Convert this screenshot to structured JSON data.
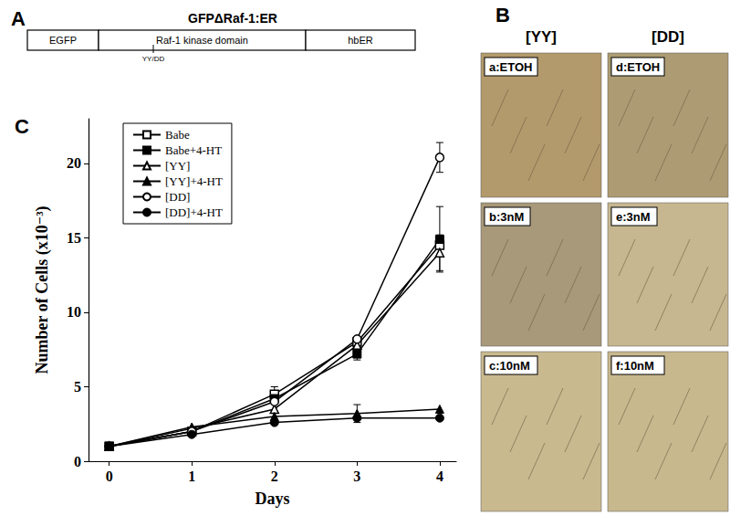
{
  "panel_a": {
    "label": "A",
    "title": "GFPΔRaf-1:ER",
    "segments": [
      "EGFP",
      "Raf-1 kinase domain",
      "hbER"
    ],
    "mutation": "YY/DD"
  },
  "panel_b": {
    "label": "B",
    "columns": [
      "[YY]",
      "[DD]"
    ],
    "images": [
      [
        "a:ETOH",
        "b:3nM",
        "c:10nM"
      ],
      [
        "d:ETOH",
        "e:3nM",
        "f:10nM"
      ]
    ]
  },
  "panel_c": {
    "label": "C"
  },
  "chart_data": {
    "type": "line",
    "x_label": "Days",
    "y_label": "Number of Cells (x10⁻³)",
    "x": [
      0,
      1,
      2,
      3,
      4
    ],
    "xlim": [
      -0.25,
      4.2
    ],
    "xticks": [
      0,
      1,
      2,
      3,
      4
    ],
    "ylim": [
      0,
      23
    ],
    "yticks": [
      0,
      5,
      10,
      15,
      20
    ],
    "grid": false,
    "legend": "upper left",
    "series": [
      {
        "name": "Babe",
        "color": "#000000",
        "marker": "open_square",
        "values": [
          1,
          2.0,
          4.5,
          8.0,
          14.5
        ],
        "errors": [
          0,
          0,
          0.5,
          0.3,
          0
        ]
      },
      {
        "name": "Babe+4-HT",
        "color": "#000000",
        "marker": "filled_square",
        "values": [
          1,
          2.0,
          4.2,
          7.2,
          14.9
        ],
        "errors": [
          0,
          0,
          0,
          0.4,
          2.2
        ]
      },
      {
        "name": "[YY]",
        "color": "#000000",
        "marker": "open_triangle",
        "values": [
          1,
          2.2,
          3.5,
          7.8,
          14.0
        ],
        "errors": [
          0,
          0,
          0,
          0,
          1.2
        ]
      },
      {
        "name": "[YY]+4-HT",
        "color": "#000000",
        "marker": "filled_triangle",
        "values": [
          1,
          2.3,
          3.0,
          3.2,
          3.5
        ],
        "errors": [
          0,
          0,
          0,
          0.6,
          0
        ]
      },
      {
        "name": "[DD]",
        "color": "#000000",
        "marker": "open_circle",
        "values": [
          1,
          2.0,
          4.0,
          8.2,
          20.4
        ],
        "errors": [
          0,
          0,
          0,
          0,
          1.0
        ]
      },
      {
        "name": "[DD]+4-HT",
        "color": "#000000",
        "marker": "filled_circle",
        "values": [
          1,
          1.8,
          2.6,
          2.9,
          2.9
        ],
        "errors": [
          0,
          0,
          0,
          0,
          0
        ]
      }
    ]
  }
}
